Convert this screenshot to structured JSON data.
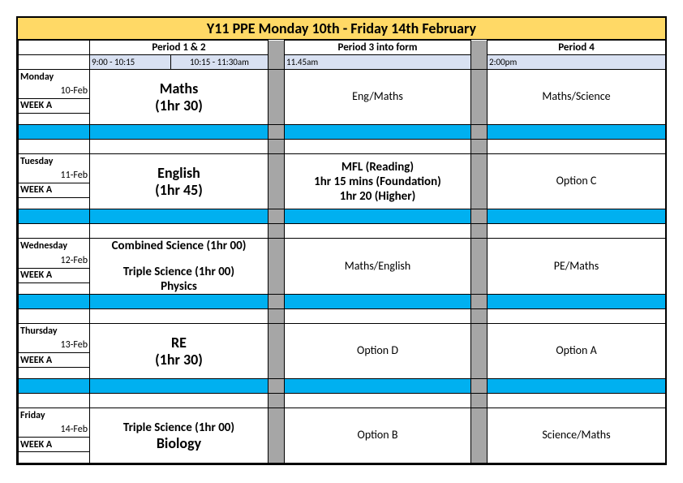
{
  "colors": {
    "title_bg": "#ffd966",
    "time_bg": "#d9e1f2",
    "gap_bg": "#a6a6a6",
    "sep_bg": "#00b0f0",
    "border": "#000000",
    "text": "#000000"
  },
  "title": "Y11 PPE Monday 10th  - Friday 14th February",
  "headers": {
    "period12": "Period 1 & 2",
    "period3": "Period 3 into form",
    "period4": "Period 4",
    "time1a": "9:00 - 10:15",
    "time1b": "10:15 - 11:30am",
    "time3": "11.45am",
    "time4": "2:00pm"
  },
  "days": [
    {
      "name": "Monday",
      "date": "10-Feb",
      "week": "WEEK   A",
      "p12_line1": "Maths",
      "p12_line2": "(1hr 30)",
      "p12_line3": "",
      "p3_line1": "Eng/Maths",
      "p3_line2": "",
      "p3_line3": "",
      "p4": "Maths/Science"
    },
    {
      "name": "Tuesday",
      "date": "11-Feb",
      "week": "WEEK   A",
      "p12_line1": "English",
      "p12_line2": "(1hr 45)",
      "p12_line3": "",
      "p3_line1": "MFL (Reading)",
      "p3_line2": "1hr 15 mins (Foundation)",
      "p3_line3": "1hr 20 (Higher)",
      "p4": "Option C"
    },
    {
      "name": "Wednesday",
      "date": "12-Feb",
      "week": "WEEK   A",
      "p12_line1": "Combined Science (1hr 00)",
      "p12_line2": "Triple Science (1hr 00)",
      "p12_line3": "Physics",
      "p3_line1": "Maths/English",
      "p3_line2": "",
      "p3_line3": "",
      "p4": "PE/Maths"
    },
    {
      "name": "Thursday",
      "date": "13-Feb",
      "week": "WEEK   A",
      "p12_line1": "RE",
      "p12_line2": "(1hr 30)",
      "p12_line3": "",
      "p3_line1": "Option D",
      "p3_line2": "",
      "p3_line3": "",
      "p4": "Option A"
    },
    {
      "name": "Friday",
      "date": "14-Feb",
      "week": "WEEK   A",
      "p12_line1": "Triple Science (1hr 00)",
      "p12_line2": "Biology",
      "p12_line3": "",
      "p3_line1": "Option B",
      "p3_line2": "",
      "p3_line3": "",
      "p4": "Science/Maths"
    }
  ]
}
